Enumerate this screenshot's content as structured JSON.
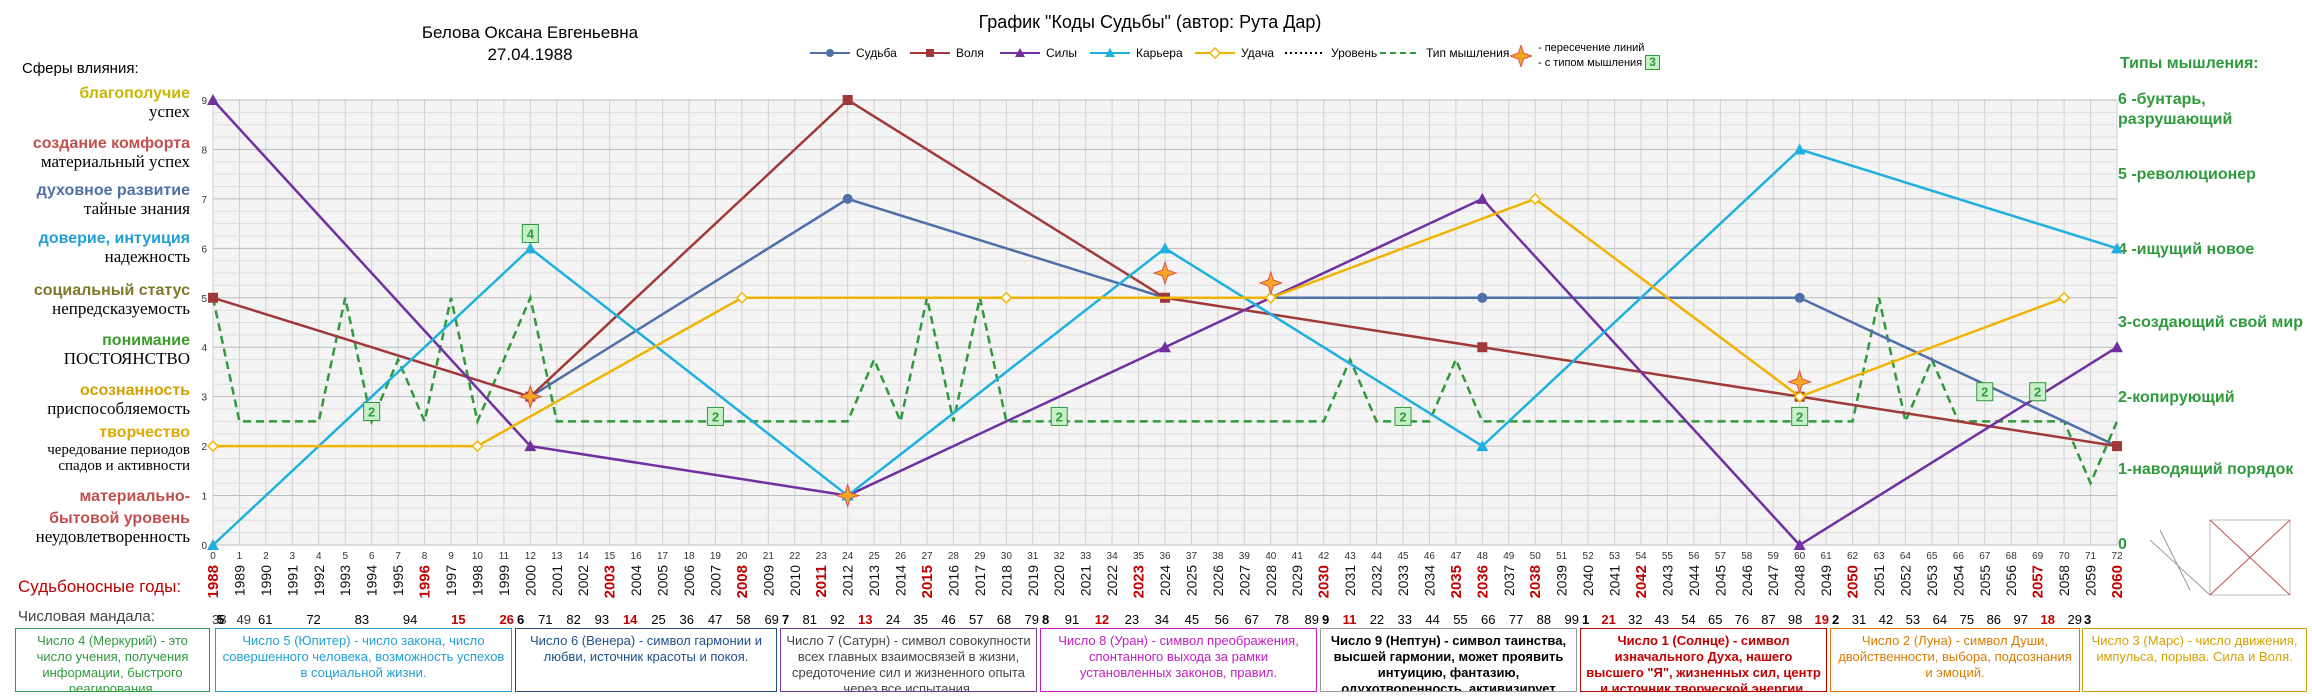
{
  "header": {
    "person_name": "Белова Оксана Евгеньевна",
    "birth_date": "27.04.1988",
    "chart_title": "График \"Коды Судьбы\" (автор: Рута Дар)"
  },
  "legend": {
    "items": [
      "Судьба",
      "Воля",
      "Силы",
      "Карьера",
      "Удача",
      "Уровень",
      "Тип мышления"
    ],
    "intersection_line1": "- пересечение линий",
    "intersection_line2": "- с типом мышления",
    "intersection_badge": "3"
  },
  "spheres": {
    "title": "Сферы влияния:",
    "items": [
      {
        "top": "благополучие",
        "bottom": "успех",
        "color": "#d4c200"
      },
      {
        "top": "создание комфорта",
        "bottom": "материальный успех",
        "color": "#c0504d"
      },
      {
        "top": "духовное развитие",
        "bottom": "тайные знания",
        "color": "#4f6fa8"
      },
      {
        "top": "доверие, интуиция",
        "bottom": "надежность",
        "color": "#1f9fd4"
      },
      {
        "top": "социальный статус",
        "bottom": "непредсказуемость",
        "color": "#7a7a2a"
      },
      {
        "top": "понимание",
        "bottom": "ПОСТОЯНСТВО",
        "color": "#3a9a2a"
      },
      {
        "top": "осознанность",
        "bottom": "приспособляемость",
        "color": "#d4a000"
      },
      {
        "top": "творчество",
        "bottom": "чередование периодов спадов и активности",
        "color": "#e0a800"
      },
      {
        "top": "материально-",
        "bottom": "",
        "color": "#c0504d"
      },
      {
        "top": "бытовой уровень",
        "bottom": "неудовлетворенность",
        "color": "#c0504d"
      }
    ]
  },
  "thinking_types": {
    "title": "Типы мышления:",
    "items": [
      {
        "label": "6 -бунтарь, разрушающий"
      },
      {
        "label": "5 -революционер"
      },
      {
        "label": "4 -ищущий новое"
      },
      {
        "label": "3-создающий свой мир"
      },
      {
        "label": "2-копирующий"
      },
      {
        "label": "1-наводящий порядок"
      },
      {
        "label": "0"
      }
    ]
  },
  "years_title": "Судьбоносные годы:",
  "mandala_title": "Числовая мандала:",
  "mandala_numbers": [
    {
      "nums": [
        "38",
        "49"
      ]
    },
    {
      "nums": [
        "5",
        "61",
        "72",
        "83",
        "94",
        "15",
        "26"
      ]
    },
    {
      "nums": [
        "6",
        "71",
        "82",
        "93",
        "14",
        "25",
        "36",
        "47",
        "58",
        "69"
      ]
    },
    {
      "nums": [
        "7",
        "81",
        "92",
        "13",
        "24",
        "35",
        "46",
        "57",
        "68",
        "79"
      ]
    },
    {
      "nums": [
        "8",
        "91",
        "12",
        "23",
        "34",
        "45",
        "56",
        "67",
        "78",
        "89"
      ]
    },
    {
      "nums": [
        "9",
        "11",
        "22",
        "33",
        "44",
        "55",
        "66",
        "77",
        "88",
        "99"
      ]
    },
    {
      "nums": [
        "1",
        "21",
        "32",
        "43",
        "54",
        "65",
        "76",
        "87",
        "98",
        "19"
      ]
    },
    {
      "nums": [
        "2",
        "31",
        "42",
        "53",
        "64",
        "75",
        "86",
        "97",
        "18",
        "29"
      ]
    },
    {
      "nums": [
        "3"
      ]
    }
  ],
  "mandala_boxes": [
    {
      "text": "Число 4 (Меркурий) - это число учения, получения информации, быстрого реагирования.",
      "color": "#2e9a3c",
      "border": "#2e9a3c"
    },
    {
      "text": "Число 5 (Юпитер) - число закона, число совершенного человека, возможность успехов в социальной жизни.",
      "color": "#1f9fd4",
      "border": "#1f9fd4"
    },
    {
      "text": "Число 6 (Венера) - символ гармонии и любви, источник красоты и покоя.",
      "color": "#1f4f8a",
      "border": "#1f4f8a"
    },
    {
      "text": "Число 7 (Сатурн) - символ совокупности всех главных взаимосвязей в жизни, средоточение сил и жизненного опыта через все испытания.",
      "color": "#444444",
      "border": "#7a3aa0"
    },
    {
      "text": "Число 8 (Уран) - символ преображения, спонтанного выхода за рамки установленных законов, правил.",
      "color": "#c020c0",
      "border": "#c020c0"
    },
    {
      "text": "Число 9 (Нептун) - символ таинства, высшей гармонии, может проявить интуицию, фантазию, одухотворенность, активизирует таланты.",
      "color": "#000000",
      "border": "#999999"
    },
    {
      "text": "Число 1 (Солнце) - символ изначального Духа, нашего высшего \"Я\", жизненных сил, центр и источник творческой энергии.",
      "color": "#c00000",
      "border": "#c00000"
    },
    {
      "text": "Число 2 (Луна) - символ Души, двойственности, выбора, подсознания и эмоций.",
      "color": "#d97a00",
      "border": "#d97a00"
    },
    {
      "text": "Число 3 (Марс) - число движения, импульса, порыва. Сила и Воля.",
      "color": "#d4a000",
      "border": "#d4a000"
    }
  ],
  "chart_data": {
    "type": "line",
    "title": "График \"Коды Судьбы\" (автор: Рута Дар)",
    "xlim": [
      0,
      72
    ],
    "ylim": [
      0,
      9
    ],
    "y_ticks": [
      "0",
      "1",
      "2",
      "3",
      "4",
      "5",
      "6",
      "7",
      "8",
      "9"
    ],
    "x_ages": [
      "0",
      "1",
      "2",
      "3",
      "4",
      "5",
      "6",
      "7",
      "8",
      "9",
      "10",
      "11",
      "12",
      "13",
      "14",
      "15",
      "16",
      "17",
      "18",
      "19",
      "20",
      "21",
      "22",
      "23",
      "24",
      "25",
      "26",
      "27",
      "28",
      "29",
      "30",
      "31",
      "32",
      "33",
      "34",
      "35",
      "36",
      "37",
      "38",
      "39",
      "40",
      "41",
      "42",
      "43",
      "44",
      "45",
      "46",
      "47",
      "48",
      "49",
      "50",
      "51",
      "52",
      "53",
      "54",
      "55",
      "56",
      "57",
      "58",
      "59",
      "60",
      "61",
      "62",
      "63",
      "64",
      "65",
      "66",
      "67",
      "68",
      "69",
      "70",
      "71",
      "72"
    ],
    "x_years": [
      "1988",
      "1989",
      "1990",
      "1991",
      "1992",
      "1993",
      "1994",
      "1995",
      "1996",
      "1997",
      "1998",
      "1999",
      "2000",
      "2001",
      "2002",
      "2003",
      "2004",
      "2005",
      "2006",
      "2007",
      "2008",
      "2009",
      "2010",
      "2011",
      "2012",
      "2013",
      "2014",
      "2015",
      "2016",
      "2017",
      "2018",
      "2019",
      "2020",
      "2021",
      "2022",
      "2023",
      "2024",
      "2025",
      "2026",
      "2027",
      "2028",
      "2029",
      "2030",
      "2031",
      "2032",
      "2033",
      "2034",
      "2035",
      "2036",
      "2037",
      "2038",
      "2039",
      "2040",
      "2041",
      "2042",
      "2043",
      "2044",
      "2045",
      "2046",
      "2047",
      "2048",
      "2049",
      "2050",
      "2051",
      "2052",
      "2053",
      "2054",
      "2055",
      "2056",
      "2057",
      "2058",
      "2059",
      "2060"
    ],
    "fateful_years": [
      "1988",
      "1996",
      "2003",
      "2008",
      "2011",
      "2015",
      "2023",
      "2030",
      "2035",
      "2036",
      "2038",
      "2042",
      "2050",
      "2057",
      "2060"
    ],
    "series": [
      {
        "name": "Судьба",
        "color": "#4f6fa8",
        "marker": "circle",
        "points": [
          [
            12,
            3
          ],
          [
            24,
            7
          ],
          [
            36,
            5
          ],
          [
            48,
            5
          ],
          [
            60,
            5
          ],
          [
            72,
            2
          ]
        ]
      },
      {
        "name": "Воля",
        "color": "#a03a3a",
        "marker": "square",
        "points": [
          [
            0,
            5
          ],
          [
            12,
            3
          ],
          [
            24,
            9
          ],
          [
            36,
            5
          ],
          [
            48,
            4
          ],
          [
            60,
            3
          ],
          [
            72,
            2
          ]
        ]
      },
      {
        "name": "Силы",
        "color": "#7030a0",
        "marker": "triangle",
        "points": [
          [
            0,
            9
          ],
          [
            12,
            2
          ],
          [
            24,
            1
          ],
          [
            36,
            4
          ],
          [
            48,
            7
          ],
          [
            60,
            0
          ],
          [
            72,
            4
          ]
        ]
      },
      {
        "name": "Карьера",
        "color": "#1fb0e0",
        "marker": "triangle",
        "points": [
          [
            0,
            0
          ],
          [
            12,
            6
          ],
          [
            24,
            1
          ],
          [
            36,
            6
          ],
          [
            48,
            2
          ],
          [
            60,
            8
          ],
          [
            72,
            6
          ]
        ]
      },
      {
        "name": "Удача",
        "color": "#f0b400",
        "marker": "diamond",
        "points": [
          [
            0,
            2
          ],
          [
            10,
            2
          ],
          [
            20,
            5
          ],
          [
            30,
            5
          ],
          [
            40,
            5
          ],
          [
            50,
            7
          ],
          [
            60,
            3
          ],
          [
            70,
            5
          ]
        ]
      }
    ],
    "thinking_type": {
      "name": "Тип мышления",
      "color": "#2e9a3c",
      "y_axis": "right",
      "ylim": [
        0,
        7.2
      ],
      "points": [
        [
          0,
          4
        ],
        [
          1,
          2
        ],
        [
          2,
          2
        ],
        [
          3,
          2
        ],
        [
          4,
          2
        ],
        [
          5,
          4
        ],
        [
          6,
          2
        ],
        [
          7,
          3
        ],
        [
          8,
          2
        ],
        [
          9,
          4
        ],
        [
          10,
          2
        ],
        [
          11,
          3
        ],
        [
          12,
          4
        ],
        [
          13,
          2
        ],
        [
          14,
          2
        ],
        [
          15,
          2
        ],
        [
          16,
          2
        ],
        [
          17,
          2
        ],
        [
          18,
          2
        ],
        [
          19,
          2
        ],
        [
          20,
          2
        ],
        [
          21,
          2
        ],
        [
          22,
          2
        ],
        [
          23,
          2
        ],
        [
          24,
          2
        ],
        [
          25,
          3
        ],
        [
          26,
          2
        ],
        [
          27,
          4
        ],
        [
          28,
          2
        ],
        [
          29,
          4
        ],
        [
          30,
          2
        ],
        [
          31,
          2
        ],
        [
          32,
          2
        ],
        [
          33,
          2
        ],
        [
          34,
          2
        ],
        [
          35,
          2
        ],
        [
          36,
          2
        ],
        [
          37,
          2
        ],
        [
          38,
          2
        ],
        [
          39,
          2
        ],
        [
          40,
          2
        ],
        [
          41,
          2
        ],
        [
          42,
          2
        ],
        [
          43,
          3
        ],
        [
          44,
          2
        ],
        [
          45,
          2
        ],
        [
          46,
          2
        ],
        [
          47,
          3
        ],
        [
          48,
          2
        ],
        [
          49,
          2
        ],
        [
          50,
          2
        ],
        [
          51,
          2
        ],
        [
          52,
          2
        ],
        [
          53,
          2
        ],
        [
          54,
          2
        ],
        [
          55,
          2
        ],
        [
          56,
          2
        ],
        [
          57,
          2
        ],
        [
          58,
          2
        ],
        [
          59,
          2
        ],
        [
          60,
          2
        ],
        [
          61,
          2
        ],
        [
          62,
          2
        ],
        [
          63,
          4
        ],
        [
          64,
          2
        ],
        [
          65,
          3
        ],
        [
          66,
          2
        ],
        [
          67,
          2
        ],
        [
          68,
          2
        ],
        [
          69,
          2
        ],
        [
          70,
          2
        ],
        [
          71,
          1
        ],
        [
          72,
          2
        ]
      ]
    },
    "intersections": [
      [
        12,
        3
      ],
      [
        24,
        1
      ],
      [
        36,
        5.5
      ],
      [
        40,
        5.3
      ],
      [
        60,
        3.3
      ]
    ],
    "badges": [
      {
        "x": 12,
        "y": 6.3,
        "label": "4"
      },
      {
        "x": 6,
        "y": 2.7,
        "label": "2"
      },
      {
        "x": 19,
        "y": 2.6,
        "label": "2"
      },
      {
        "x": 32,
        "y": 2.6,
        "label": "2"
      },
      {
        "x": 45,
        "y": 2.6,
        "label": "2"
      },
      {
        "x": 60,
        "y": 2.6,
        "label": "2"
      },
      {
        "x": 67,
        "y": 3.1,
        "label": "2"
      },
      {
        "x": 69,
        "y": 3.1,
        "label": "2"
      }
    ]
  }
}
